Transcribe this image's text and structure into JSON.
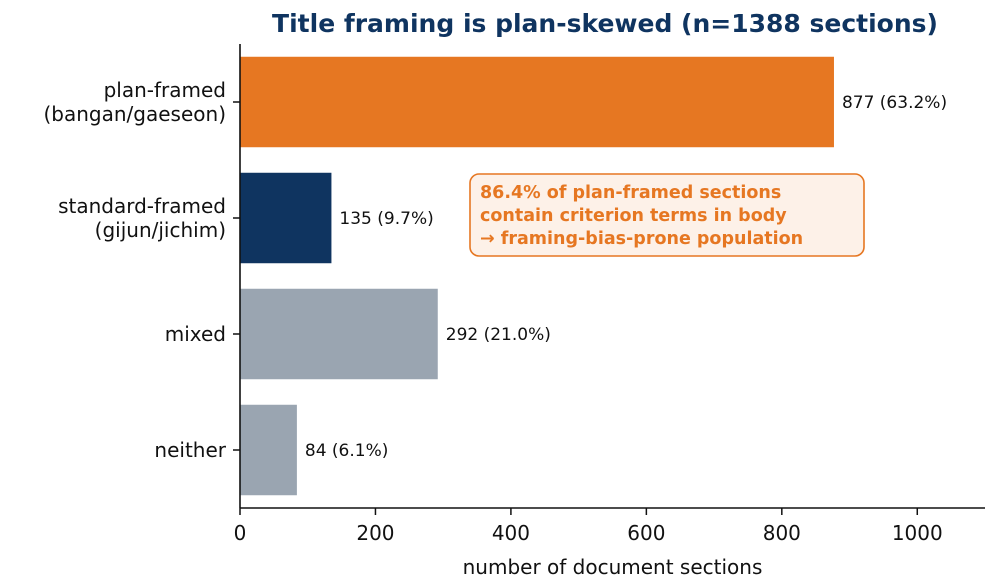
{
  "chart_data": {
    "type": "bar",
    "orientation": "horizontal",
    "title": "Title framing is plan-skewed (n=1388 sections)",
    "xlabel": "number of document sections",
    "ylabel": "",
    "xlim": [
      0,
      1100
    ],
    "xticks": [
      0,
      200,
      400,
      600,
      800,
      1000
    ],
    "grid": false,
    "categories": [
      [
        "plan-framed",
        "(bangan/gaeseon)"
      ],
      [
        "standard-framed",
        "(gijun/jichim)"
      ],
      [
        "mixed"
      ],
      [
        "neither"
      ]
    ],
    "values": [
      877,
      135,
      292,
      84
    ],
    "data_labels": [
      "877 (63.2%)",
      "135 (9.7%)",
      "292 (21.0%)",
      "84 (6.1%)"
    ],
    "colors": [
      "#e67722",
      "#0f3460",
      "#9aa5b1",
      "#9aa5b1"
    ],
    "annotation": {
      "lines": [
        "86.4% of plan-framed sections",
        "contain criterion terms in body",
        "→ framing-bias-prone population"
      ],
      "text_color": "#e67722",
      "box_fill": "#fdf1e8",
      "box_border": "#e67722"
    },
    "title_color": "#0f3460"
  }
}
